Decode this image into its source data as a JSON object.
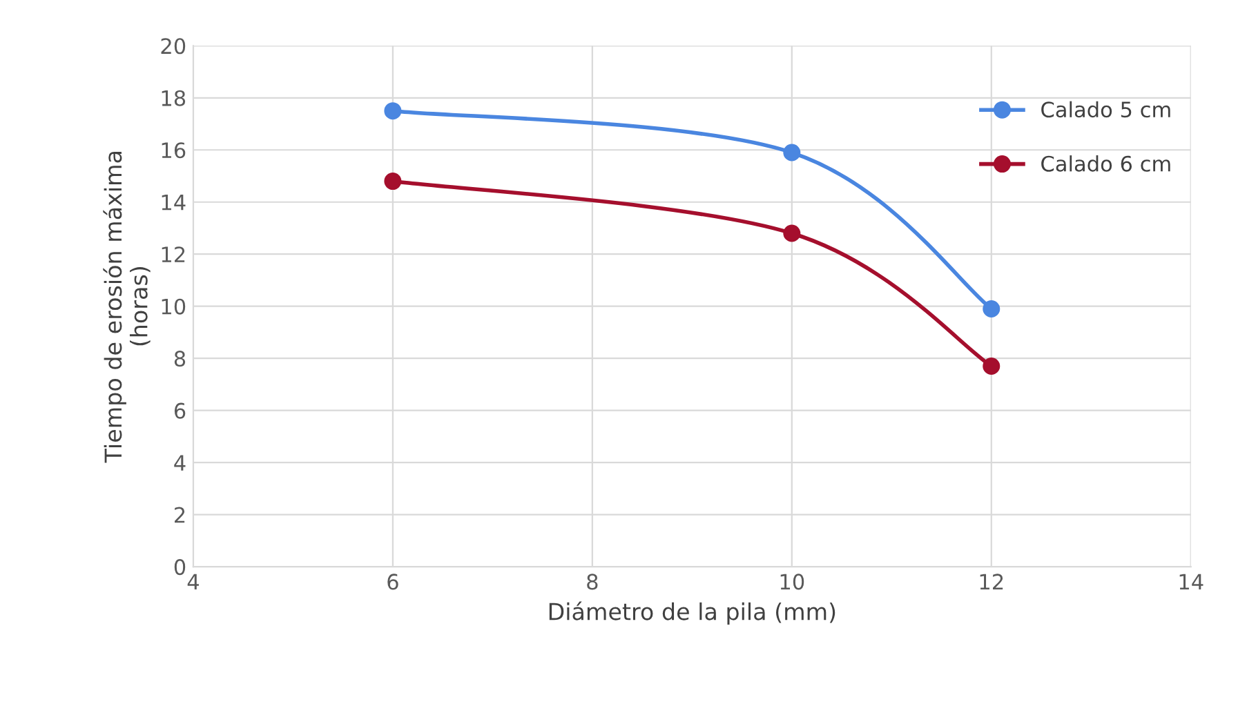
{
  "chart_data": {
    "type": "line",
    "xlabel": "Diámetro de la pila (mm)",
    "ylabel": "Tiempo de erosión máxima\n(horas)",
    "x": [
      6,
      10,
      12
    ],
    "series": [
      {
        "name": "Calado 5 cm",
        "color": "#4a86e0",
        "values": [
          17.5,
          15.9,
          9.9
        ]
      },
      {
        "name": "Calado 6 cm",
        "color": "#a50f2d",
        "values": [
          14.8,
          12.8,
          7.7
        ]
      }
    ],
    "xlim": [
      4,
      14
    ],
    "xticks": [
      4,
      6,
      8,
      10,
      12,
      14
    ],
    "ylim": [
      0,
      20
    ],
    "yticks": [
      0,
      2,
      4,
      6,
      8,
      10,
      12,
      14,
      16,
      18,
      20
    ],
    "grid": true,
    "legend": "top right",
    "marker": "circle",
    "line_style": "solid"
  }
}
